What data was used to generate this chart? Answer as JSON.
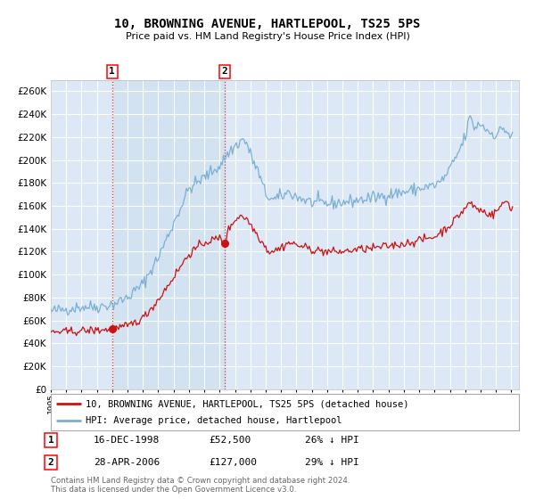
{
  "title": "10, BROWNING AVENUE, HARTLEPOOL, TS25 5PS",
  "subtitle": "Price paid vs. HM Land Registry's House Price Index (HPI)",
  "ylim": [
    0,
    270000
  ],
  "yticks": [
    0,
    20000,
    40000,
    60000,
    80000,
    100000,
    120000,
    140000,
    160000,
    180000,
    200000,
    220000,
    240000,
    260000
  ],
  "background_color": "#ffffff",
  "plot_bg_color": "#dce8f5",
  "grid_color": "#ffffff",
  "transaction1_date": 1999.0,
  "transaction1_price": 52500,
  "transaction2_date": 2006.33,
  "transaction2_price": 127000,
  "legend_line1": "10, BROWNING AVENUE, HARTLEPOOL, TS25 5PS (detached house)",
  "legend_line2": "HPI: Average price, detached house, Hartlepool",
  "note1_date": "16-DEC-1998",
  "note1_price": "£52,500",
  "note1_hpi": "26% ↓ HPI",
  "note2_date": "28-APR-2006",
  "note2_price": "£127,000",
  "note2_hpi": "29% ↓ HPI",
  "footer": "Contains HM Land Registry data © Crown copyright and database right 2024.\nThis data is licensed under the Open Government Licence v3.0.",
  "hpi_color": "#7bafd4",
  "price_color": "#cc1111",
  "highlight_fill": "#cfe0f0"
}
